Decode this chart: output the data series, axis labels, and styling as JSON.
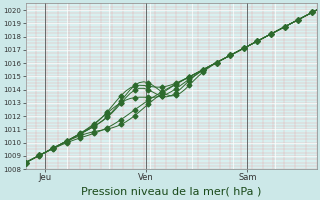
{
  "title": "Pression niveau de la mer( hPa )",
  "bg_color": "#cce8e8",
  "plot_bg_color": "#d8f0f0",
  "line_color": "#2d6a2d",
  "ylim": [
    1008,
    1020.5
  ],
  "yticks": [
    1008,
    1009,
    1010,
    1011,
    1012,
    1013,
    1014,
    1015,
    1016,
    1017,
    1018,
    1019,
    1020
  ],
  "xtick_labels": [
    "Jeu",
    "Ven",
    "Sam"
  ],
  "xtick_positions": [
    0.07,
    0.435,
    0.8
  ],
  "xlim": [
    0.0,
    1.05
  ],
  "xlabel_fontsize": 8,
  "ytick_fontsize": 5,
  "xtick_fontsize": 6,
  "line_width": 0.7,
  "marker_size": 2.5
}
